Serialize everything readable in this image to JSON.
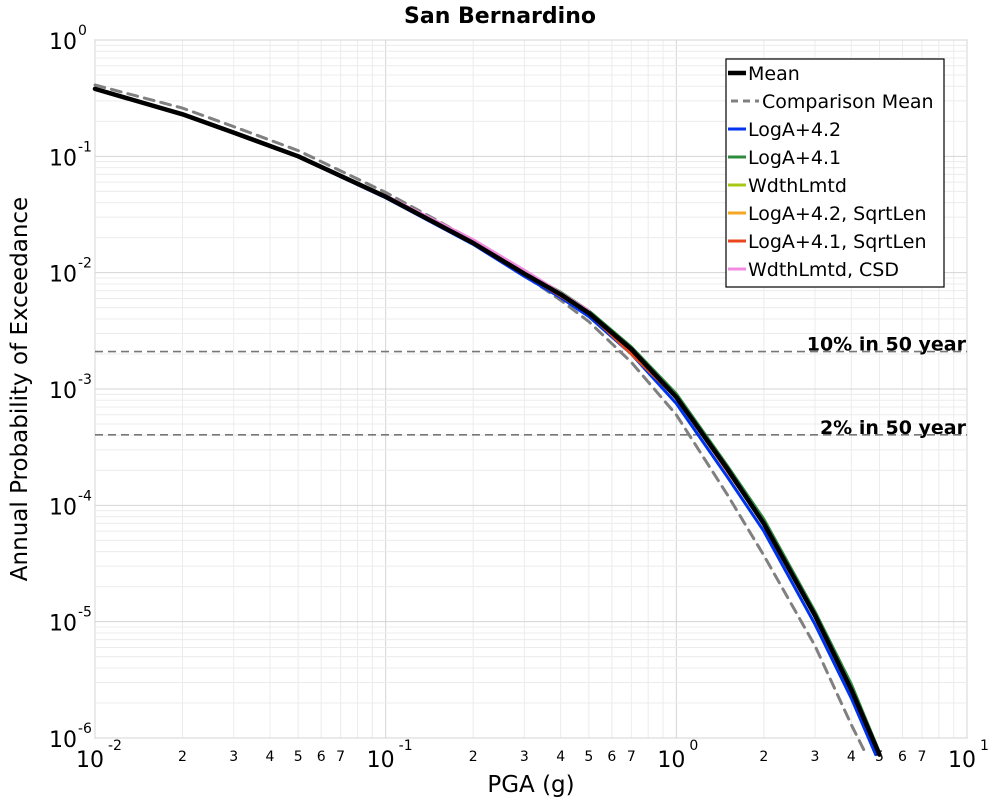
{
  "chart_data": {
    "type": "line",
    "title": "San Bernardino",
    "xlabel": "PGA (g)",
    "ylabel": "Annual Probability of Exceedance",
    "xscale": "log",
    "yscale": "log",
    "xlim": [
      0.01,
      10
    ],
    "ylim": [
      1e-06,
      1
    ],
    "grid": true,
    "legend_position": "top-right",
    "x_major_ticks": [
      {
        "base": "10",
        "exp": "-2"
      },
      {
        "base": "10",
        "exp": "-1"
      },
      {
        "base": "10",
        "exp": "0"
      },
      {
        "base": "10",
        "exp": "1"
      }
    ],
    "y_major_ticks": [
      {
        "base": "10",
        "exp": "-6"
      },
      {
        "base": "10",
        "exp": "-5"
      },
      {
        "base": "10",
        "exp": "-4"
      },
      {
        "base": "10",
        "exp": "-3"
      },
      {
        "base": "10",
        "exp": "-2"
      },
      {
        "base": "10",
        "exp": "-1"
      },
      {
        "base": "10",
        "exp": "0"
      }
    ],
    "x_minor_tick_labels": [
      "2",
      "3",
      "4",
      "5",
      "6",
      "7"
    ],
    "reference_lines": [
      {
        "label": "10% in 50 year",
        "y": 0.0021
      },
      {
        "label": "2% in 50 year",
        "y": 0.000404
      }
    ],
    "series": [
      {
        "name": "Mean",
        "color": "#000000",
        "style": "solid",
        "x": [
          0.01,
          0.02,
          0.03,
          0.05,
          0.1,
          0.2,
          0.3,
          0.4,
          0.5,
          0.7,
          1.0,
          1.5,
          2.0,
          3.0,
          4.0,
          5.0
        ],
        "y": [
          0.38,
          0.23,
          0.16,
          0.1,
          0.045,
          0.018,
          0.0098,
          0.0065,
          0.0045,
          0.0022,
          0.00085,
          0.000205,
          6.96e-05,
          1.13e-05,
          2.6e-06,
          7.2e-07
        ]
      },
      {
        "name": "Comparison Mean",
        "color": "#808080",
        "style": "dashed",
        "x": [
          0.01,
          0.02,
          0.03,
          0.05,
          0.1,
          0.2,
          0.3,
          0.4,
          0.5,
          0.7,
          1.0,
          1.5,
          2.0,
          3.0,
          4.0,
          4.5
        ],
        "y": [
          0.41,
          0.26,
          0.18,
          0.112,
          0.049,
          0.019,
          0.0095,
          0.0058,
          0.0038,
          0.0017,
          0.0006,
          0.000123,
          3.72e-05,
          6.2e-06,
          1.3e-06,
          7.2e-07
        ]
      },
      {
        "name": "LogA+4.2",
        "color": "#0033ee",
        "style": "solid",
        "x": [
          0.01,
          0.02,
          0.03,
          0.05,
          0.1,
          0.2,
          0.3,
          0.4,
          0.5,
          0.7,
          1.0,
          1.5,
          2.0,
          3.0,
          4.0,
          4.85
        ],
        "y": [
          0.38,
          0.228,
          0.158,
          0.099,
          0.044,
          0.0175,
          0.0093,
          0.0061,
          0.0042,
          0.002,
          0.00075,
          0.000175,
          6.01e-05,
          9.5e-06,
          2.2e-06,
          7.2e-07
        ]
      },
      {
        "name": "LogA+4.1",
        "color": "#2e8b3e",
        "style": "solid",
        "x": [
          0.01,
          0.02,
          0.03,
          0.05,
          0.1,
          0.2,
          0.3,
          0.4,
          0.5,
          0.7,
          1.0,
          1.5,
          2.0,
          3.0,
          4.0,
          5.0
        ],
        "y": [
          0.38,
          0.232,
          0.162,
          0.101,
          0.0455,
          0.0183,
          0.0101,
          0.0068,
          0.0047,
          0.0023,
          0.00091,
          0.000218,
          7.61e-05,
          1.22e-05,
          2.9e-06,
          7.5e-07
        ]
      },
      {
        "name": "WdthLmtd",
        "color": "#a8c818",
        "style": "solid",
        "x": [
          0.3,
          0.5,
          1.0,
          2.0
        ],
        "y": [
          0.0098,
          0.0045,
          0.00085,
          6.96e-05
        ]
      },
      {
        "name": "LogA+4.2, SqrtLen",
        "color": "#f5a623",
        "style": "solid",
        "x": [
          0.3,
          0.5,
          1.0,
          2.0
        ],
        "y": [
          0.0098,
          0.0045,
          0.00085,
          6.96e-05
        ]
      },
      {
        "name": "LogA+4.1, SqrtLen",
        "color": "#e8471c",
        "style": "solid",
        "x": [
          0.3,
          0.5,
          1.0,
          2.0
        ],
        "y": [
          0.0098,
          0.0045,
          0.00085,
          6.96e-05
        ]
      },
      {
        "name": "WdthLmtd, CSD",
        "color": "#f28ce0",
        "style": "solid",
        "x": [
          0.1,
          0.2,
          0.3,
          0.5
        ],
        "y": [
          0.046,
          0.0192,
          0.0105,
          0.0047
        ]
      }
    ]
  }
}
